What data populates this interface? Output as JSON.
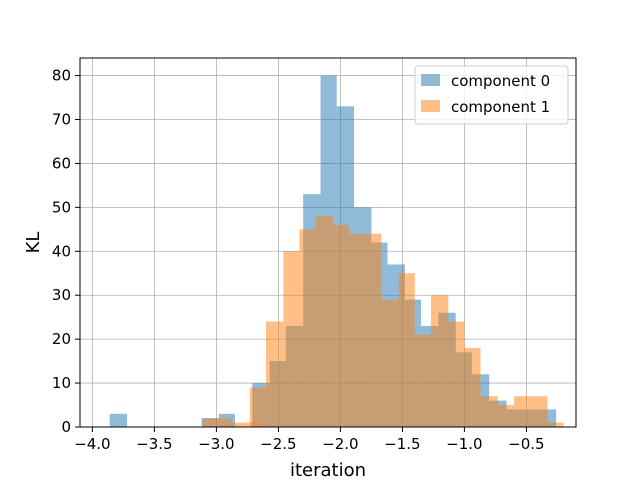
{
  "chart_data": {
    "type": "bar",
    "subtype": "histogram",
    "title": "",
    "xlabel": "iteration",
    "ylabel": "KL",
    "xlim": [
      -4.1,
      -0.1
    ],
    "ylim": [
      0,
      84
    ],
    "xticks": [
      -4.0,
      -3.5,
      -3.0,
      -2.5,
      -2.0,
      -1.5,
      -1.0,
      -0.5
    ],
    "xtick_labels": [
      "−4.0",
      "−3.5",
      "−3.0",
      "−2.5",
      "−2.0",
      "−1.5",
      "−1.0",
      "−0.5"
    ],
    "yticks": [
      0,
      10,
      20,
      30,
      40,
      50,
      60,
      70,
      80
    ],
    "ytick_labels": [
      "0",
      "10",
      "20",
      "30",
      "40",
      "50",
      "60",
      "70",
      "80"
    ],
    "grid": true,
    "legend_position": "top-right",
    "series": [
      {
        "name": "component 0",
        "color": "#1f77b4",
        "alpha": 0.5,
        "bins": [
          [
            -3.86,
            -3.72,
            3
          ],
          [
            -3.12,
            -2.98,
            2
          ],
          [
            -2.98,
            -2.85,
            3
          ],
          [
            -2.71,
            -2.57,
            10
          ],
          [
            -2.57,
            -2.44,
            15
          ],
          [
            -2.44,
            -2.3,
            23
          ],
          [
            -2.3,
            -2.16,
            53
          ],
          [
            -2.16,
            -2.03,
            80
          ],
          [
            -2.03,
            -1.89,
            73
          ],
          [
            -1.89,
            -1.75,
            50
          ],
          [
            -1.75,
            -1.62,
            42
          ],
          [
            -1.62,
            -1.48,
            37
          ],
          [
            -1.48,
            -1.35,
            29
          ],
          [
            -1.35,
            -1.21,
            23
          ],
          [
            -1.21,
            -1.07,
            26
          ],
          [
            -1.07,
            -0.94,
            17
          ],
          [
            -0.94,
            -0.8,
            12
          ],
          [
            -0.8,
            -0.66,
            6
          ],
          [
            -0.66,
            -0.53,
            4
          ],
          [
            -0.53,
            -0.39,
            4
          ],
          [
            -0.39,
            -0.26,
            4
          ]
        ]
      },
      {
        "name": "component 1",
        "color": "#ff7f0e",
        "alpha": 0.5,
        "bins": [
          [
            -3.11,
            -2.88,
            2
          ],
          [
            -2.88,
            -2.66,
            1
          ],
          [
            -2.73,
            -2.6,
            9
          ],
          [
            -2.6,
            -2.46,
            24
          ],
          [
            -2.46,
            -2.33,
            40
          ],
          [
            -2.33,
            -2.2,
            45
          ],
          [
            -2.2,
            -2.06,
            48
          ],
          [
            -2.06,
            -1.93,
            46
          ],
          [
            -1.93,
            -1.8,
            44
          ],
          [
            -1.8,
            -1.67,
            44
          ],
          [
            -1.67,
            -1.53,
            29
          ],
          [
            -1.53,
            -1.4,
            35
          ],
          [
            -1.4,
            -1.27,
            21
          ],
          [
            -1.27,
            -1.13,
            30
          ],
          [
            -1.13,
            -1.0,
            24
          ],
          [
            -1.0,
            -0.87,
            18
          ],
          [
            -0.87,
            -0.73,
            7
          ],
          [
            -0.73,
            -0.6,
            5
          ],
          [
            -0.6,
            -0.47,
            7
          ],
          [
            -0.47,
            -0.33,
            7
          ],
          [
            -0.33,
            -0.2,
            1
          ]
        ]
      }
    ]
  }
}
